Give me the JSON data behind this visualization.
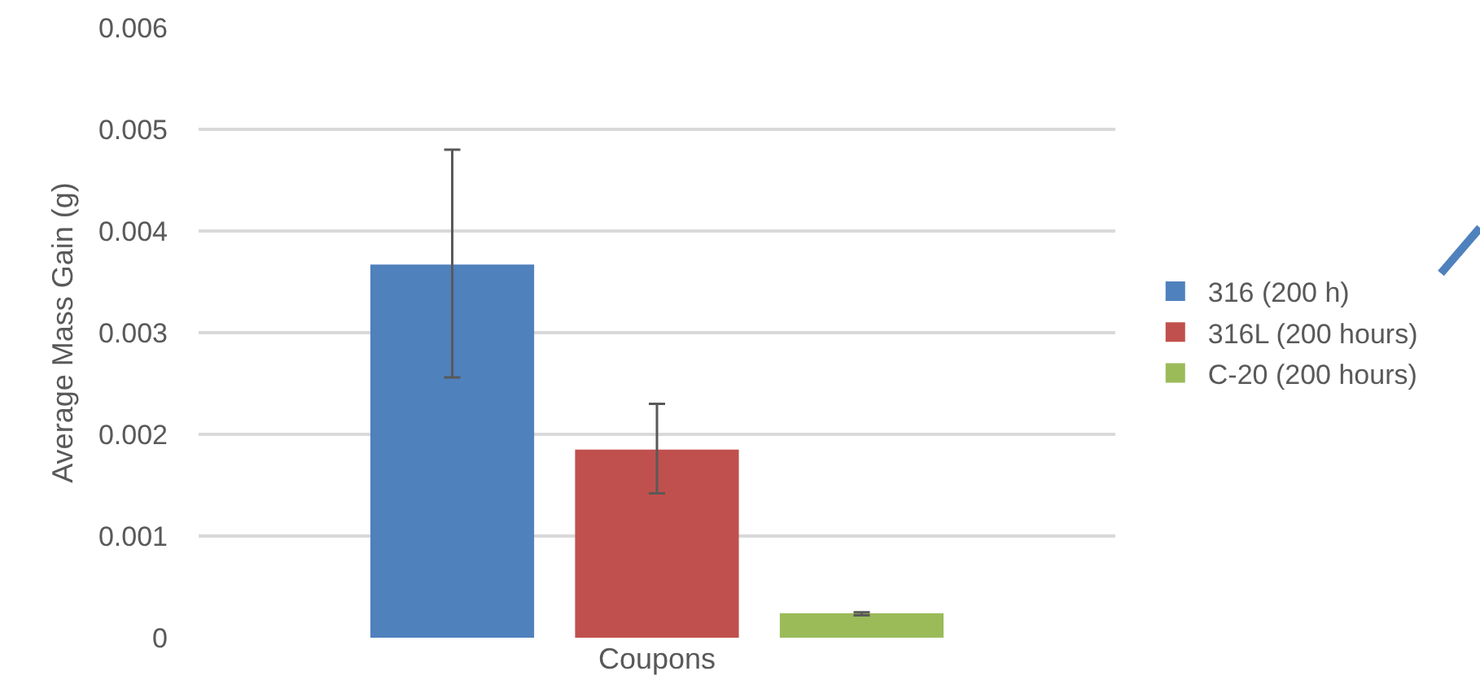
{
  "chart_data": {
    "type": "bar",
    "categories": [
      "Coupons"
    ],
    "ylabel": "Average Mass Gain (g)",
    "series": [
      {
        "name": "316 (200 h)",
        "color": "#4f81bd",
        "values": [
          0.00367
        ],
        "errors": [
          [
            0.00256,
            0.0048
          ]
        ]
      },
      {
        "name": "316L (200 hours)",
        "color": "#c0504d",
        "values": [
          0.00185
        ],
        "errors": [
          [
            0.00142,
            0.0023
          ]
        ]
      },
      {
        "name": "C-20 (200 hours)",
        "color": "#9bbb59",
        "values": [
          0.00024
        ],
        "errors": [
          [
            0.00022,
            0.00025
          ]
        ]
      }
    ],
    "ylim": [
      0,
      0.006
    ],
    "yticks": [
      0,
      0.001,
      0.002,
      0.003,
      0.004,
      0.005,
      0.006
    ],
    "grid": "y",
    "legend": "right"
  }
}
